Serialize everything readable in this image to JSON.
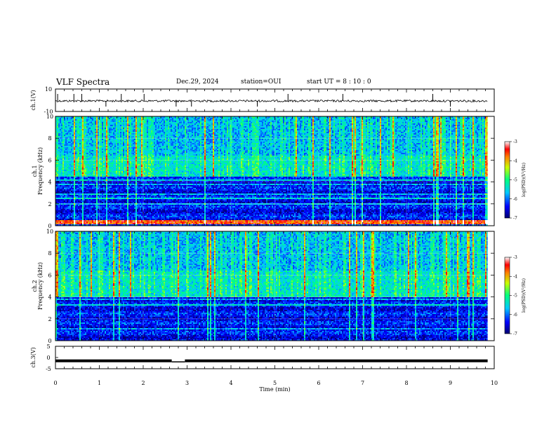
{
  "header": {
    "title": "VLF Spectra",
    "date": "Dec.29, 2024",
    "station": "station=OUI",
    "start_ut": "start  UT =  8 : 10 : 0"
  },
  "chart_data": [
    {
      "type": "line",
      "name": "ch1-waveform",
      "ylabel": "ch.1(V)",
      "ylim": [
        -10,
        10
      ],
      "yticks": [
        "10",
        "-10"
      ],
      "xlim": [
        0,
        10
      ],
      "baseline": 0,
      "spikes_min": [
        0.05,
        0.42,
        0.6,
        1.15,
        1.5,
        2.02,
        2.75,
        3.1,
        4.6,
        5.3,
        6.55,
        8.6,
        9.0
      ]
    },
    {
      "type": "heatmap",
      "name": "ch1-spectrogram",
      "ylabel": "ch.1\nFrequency (kHz)",
      "ylim": [
        0,
        10
      ],
      "yticks": [
        "0",
        "2",
        "4",
        "6",
        "8",
        "10"
      ],
      "xlim": [
        0,
        9.85
      ],
      "colorbar": {
        "label": "log(PSD)(V²/Hz)",
        "range": [
          -7,
          -3
        ],
        "ticks": [
          "-3",
          "-4",
          "-5",
          "-6",
          "-7"
        ]
      },
      "features": {
        "strong_band_khz": [
          0.2,
          0.6
        ],
        "sferic_cutoff_khz": 4.6,
        "stripes_khz": [
          2.0,
          2.6,
          3.0,
          3.4,
          3.8,
          4.2
        ]
      }
    },
    {
      "type": "heatmap",
      "name": "ch2-spectrogram",
      "ylabel": "ch.2\nFrequency (kHz)",
      "ylim": [
        0,
        10
      ],
      "yticks": [
        "0",
        "2",
        "4",
        "6",
        "8",
        "10"
      ],
      "xlim": [
        0,
        9.85
      ],
      "colorbar": {
        "label": "log(PSD)(V²/Hz)",
        "range": [
          -7,
          -3
        ],
        "ticks": [
          "-3",
          "-4",
          "-5",
          "-6",
          "-7"
        ]
      },
      "features": {
        "sferic_cutoff_khz": 4.0,
        "stripes_khz": [
          1.2,
          2.5,
          3.3,
          3.8,
          4.2
        ]
      }
    },
    {
      "type": "line",
      "name": "ch3-waveform",
      "ylabel": "ch.3(V)",
      "ylim": [
        -5,
        5
      ],
      "yticks": [
        "5",
        "0",
        "-5"
      ],
      "xlim": [
        0,
        10
      ],
      "level": -1.5,
      "gap": [
        2.65,
        2.95
      ]
    }
  ],
  "xaxis": {
    "label": "Time (min)",
    "ticks": [
      "0",
      "1",
      "2",
      "3",
      "4",
      "5",
      "6",
      "7",
      "8",
      "9",
      "10"
    ]
  },
  "colors": {
    "ink": "#000000",
    "grid": "#ffffff"
  }
}
